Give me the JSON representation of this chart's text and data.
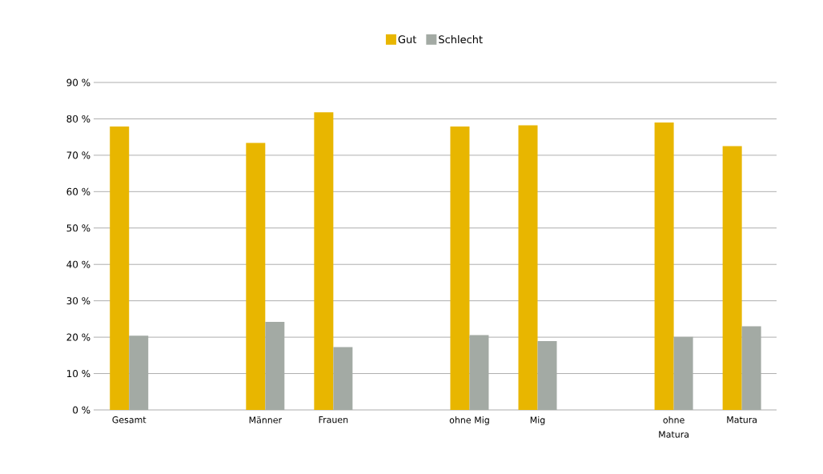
{
  "chart_data": {
    "type": "bar",
    "categories": [
      "Gesamt",
      null,
      "Männer",
      "Frauen",
      null,
      "ohne Mig",
      "Mig",
      null,
      "ohne Matura",
      "Matura"
    ],
    "series": [
      {
        "name": "Gut",
        "color": "#e8b600",
        "values": [
          77.9,
          null,
          73.4,
          81.8,
          null,
          77.9,
          78.2,
          null,
          79.0,
          72.5
        ]
      },
      {
        "name": "Schlecht",
        "color": "#a3aaa4",
        "values": [
          20.4,
          null,
          24.2,
          17.3,
          null,
          20.6,
          18.9,
          null,
          20.1,
          23.0
        ]
      }
    ],
    "ylim": [
      0,
      90
    ],
    "yticks": [
      {
        "value": 0,
        "label": "0 %"
      },
      {
        "value": 10,
        "label": "10 %"
      },
      {
        "value": 20,
        "label": "20 %"
      },
      {
        "value": 30,
        "label": "30 %"
      },
      {
        "value": 40,
        "label": "40 %"
      },
      {
        "value": 50,
        "label": "50 %"
      },
      {
        "value": 60,
        "label": "60 %"
      },
      {
        "value": 70,
        "label": "70 %"
      },
      {
        "value": 80,
        "label": "80 %"
      },
      {
        "value": 90,
        "label": "90 %"
      }
    ],
    "grid": "y",
    "legend": "top"
  }
}
